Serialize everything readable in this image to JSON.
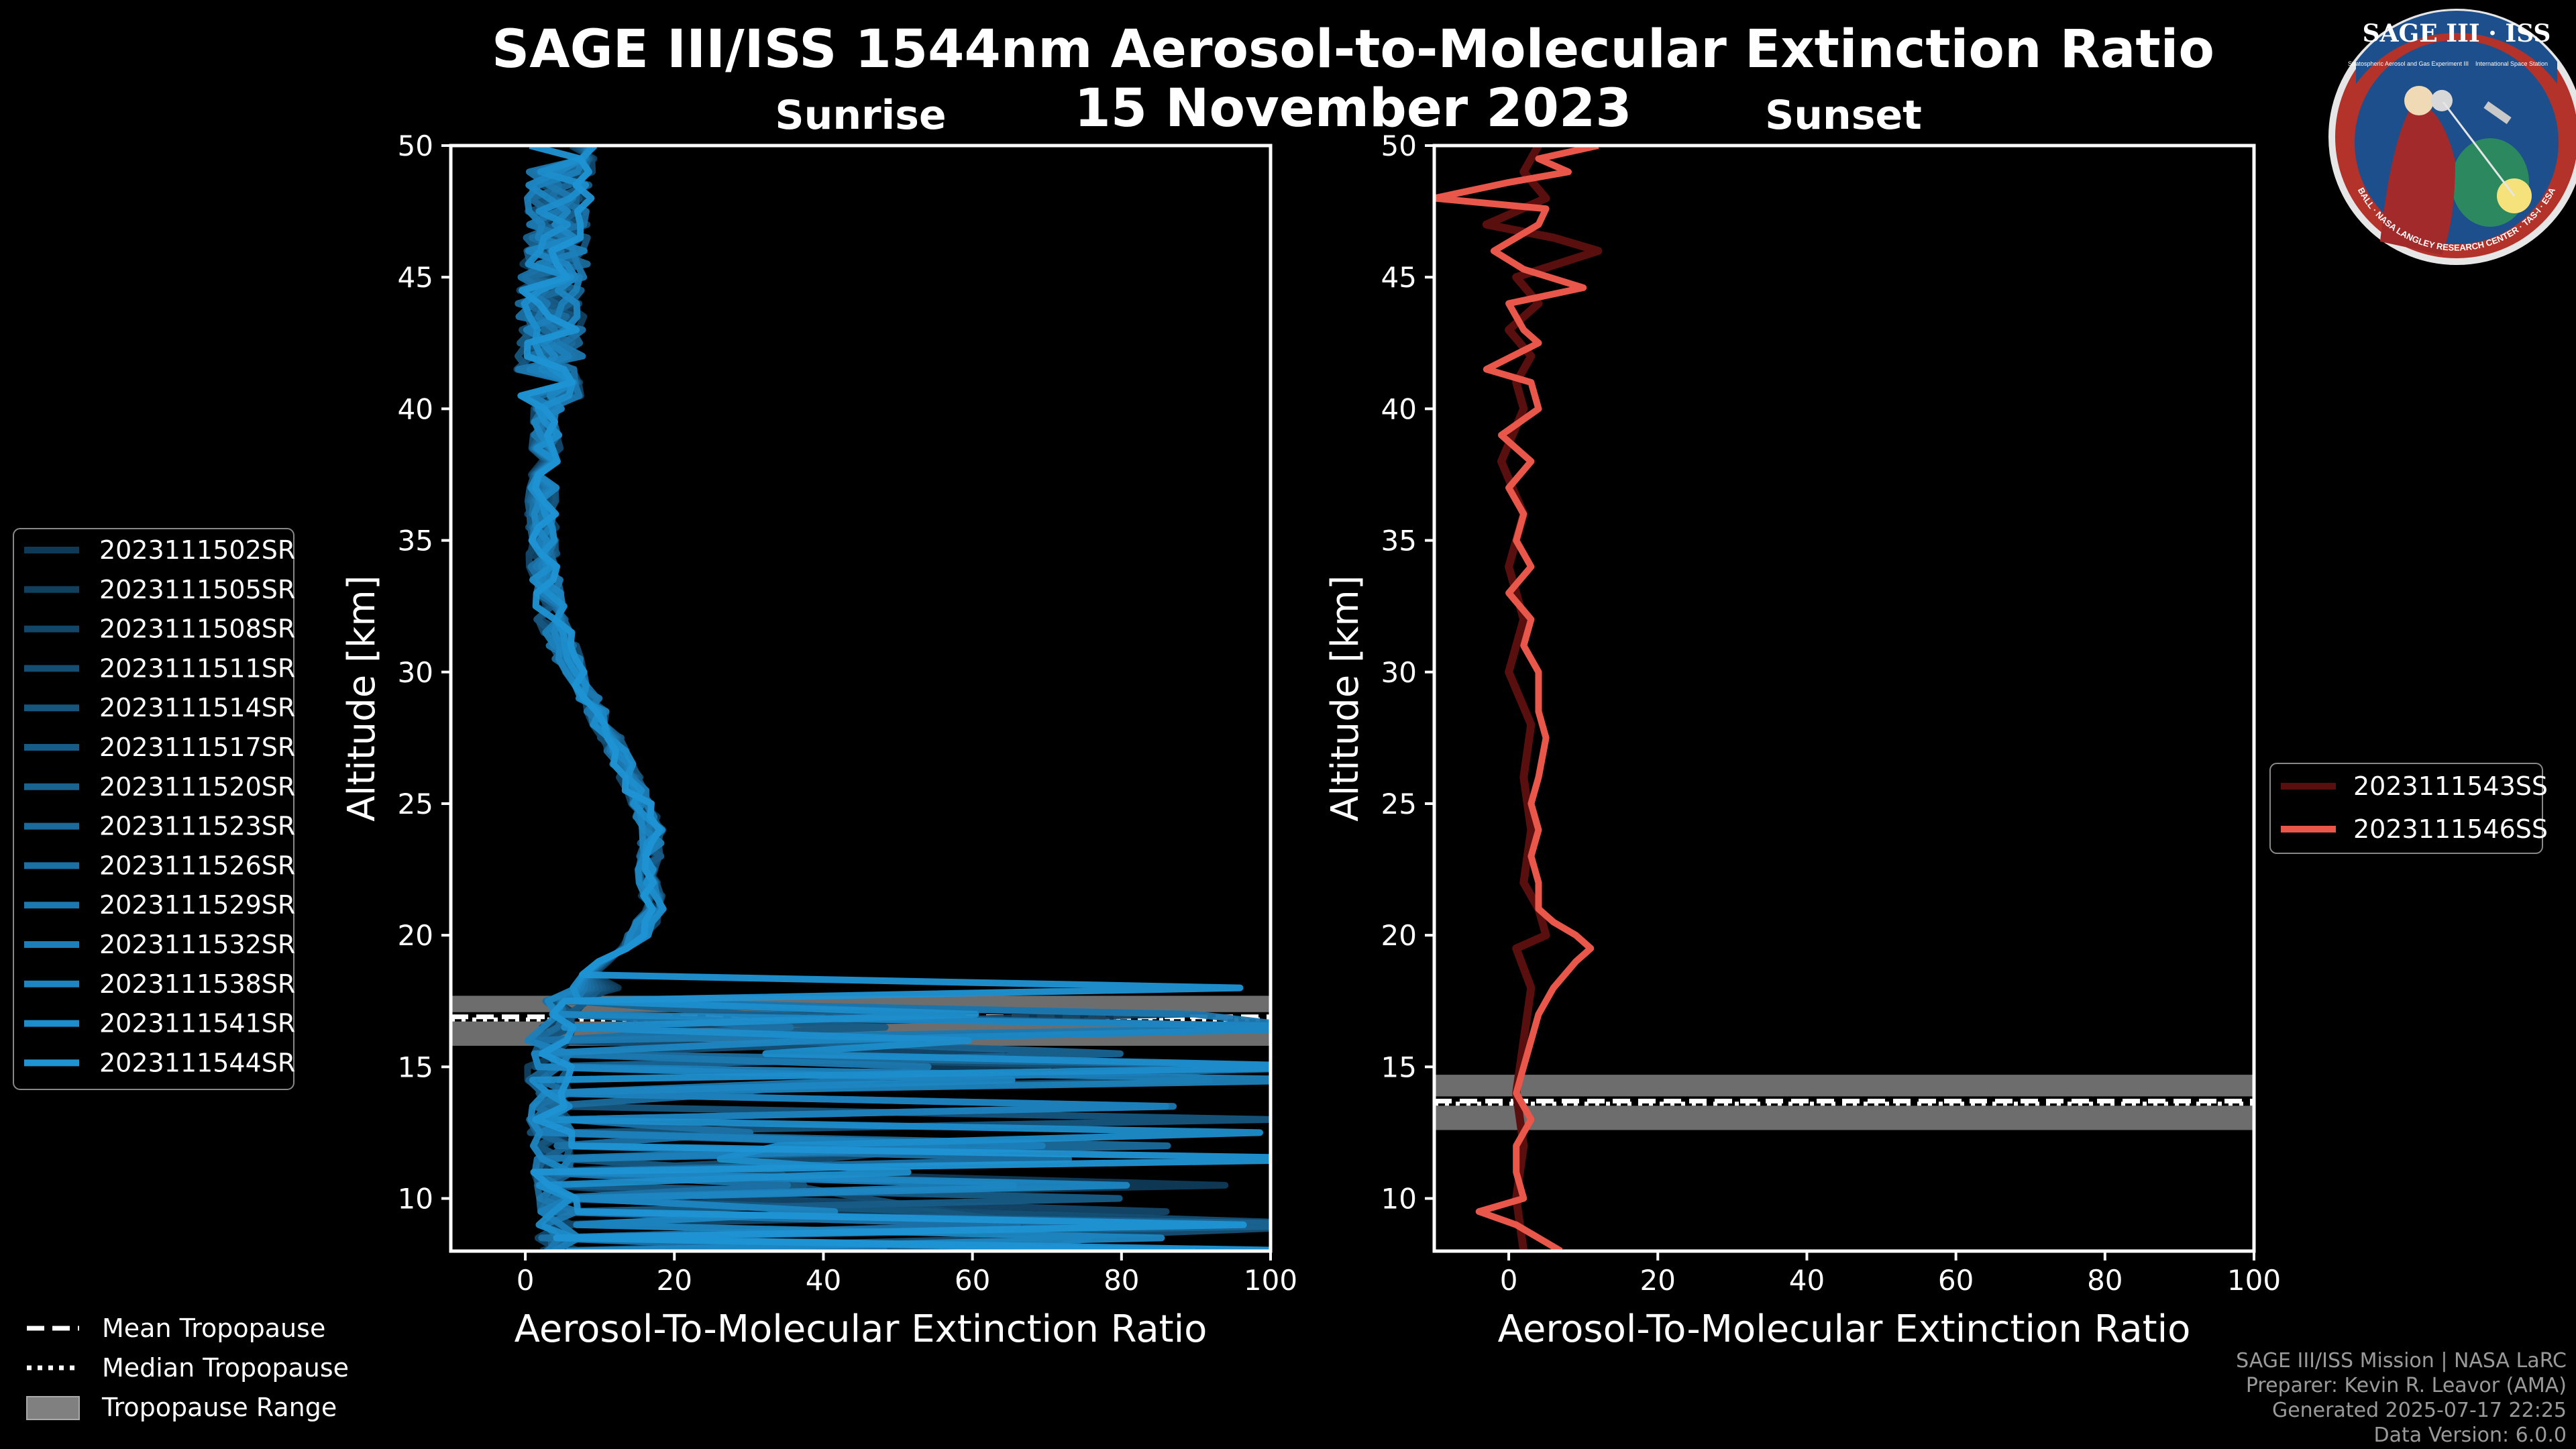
{
  "header": {
    "title_line1": "SAGE III/ISS 1544nm Aerosol-to-Molecular Extinction Ratio",
    "title_line2": "15 November 2023"
  },
  "colors": {
    "background": "#000000",
    "sunrise": "#1f8dcc",
    "sunset_light": "#e8574a",
    "sunset_dark": "#5a0f0f",
    "tropo_range": "#808080"
  },
  "tropo_legend": [
    {
      "label": "Mean Tropopause",
      "style": "dashed"
    },
    {
      "label": "Median Tropopause",
      "style": "dotted"
    },
    {
      "label": "Tropopause Range",
      "style": "patch"
    }
  ],
  "footer": {
    "line1": "SAGE III/ISS Mission | NASA LaRC",
    "line2": "Preparer: Kevin R. Leavor (AMA)",
    "line3": "Generated 2025-07-17 22:25",
    "line4": "Data Version: 6.0.0"
  },
  "logo": {
    "title": "SAGE III · ISS",
    "ring": "BALL · NASA LANGLEY RESEARCH CENTER · TAS-I · ESA",
    "sub_left": "Stratospheric Aerosol and Gas Experiment III",
    "sub_right": "International Space Station"
  },
  "chart_data": [
    {
      "type": "line",
      "panel": "sunrise",
      "title": "Sunrise",
      "xlabel": "Aerosol-To-Molecular Extinction Ratio",
      "ylabel": "Altitude [km]",
      "xlim": [
        -10,
        100
      ],
      "ylim": [
        8,
        50
      ],
      "xticks": [
        0,
        20,
        40,
        60,
        80,
        100
      ],
      "yticks": [
        10,
        15,
        20,
        25,
        30,
        35,
        40,
        45,
        50
      ],
      "legend_position": "left",
      "tropopause": {
        "mean": 16.9,
        "median": 16.8,
        "range": [
          15.8,
          17.7
        ]
      },
      "mean_profile": [
        {
          "alt": 50,
          "x": 5.0
        },
        {
          "alt": 48,
          "x": 4.5
        },
        {
          "alt": 46,
          "x": 4.0
        },
        {
          "alt": 44,
          "x": 3.5
        },
        {
          "alt": 42,
          "x": 3.2
        },
        {
          "alt": 40,
          "x": 3.0
        },
        {
          "alt": 38,
          "x": 2.6
        },
        {
          "alt": 36,
          "x": 2.2
        },
        {
          "alt": 34,
          "x": 2.4
        },
        {
          "alt": 32,
          "x": 3.5
        },
        {
          "alt": 30,
          "x": 6.5
        },
        {
          "alt": 28,
          "x": 10.5
        },
        {
          "alt": 26,
          "x": 14.0
        },
        {
          "alt": 24,
          "x": 17.0
        },
        {
          "alt": 22,
          "x": 16.5
        },
        {
          "alt": 21,
          "x": 17.5
        },
        {
          "alt": 20,
          "x": 15.0
        },
        {
          "alt": 19,
          "x": 10.5
        },
        {
          "alt": 18,
          "x": 6.0
        },
        {
          "alt": 17,
          "x": 3.0
        },
        {
          "alt": 16,
          "x": 2.0
        },
        {
          "alt": 14,
          "x": 2.0
        },
        {
          "alt": 12,
          "x": 2.5
        },
        {
          "alt": 10,
          "x": 3.0
        },
        {
          "alt": 8,
          "x": 3.5
        }
      ],
      "series": [
        {
          "name": "2023111502SR",
          "color": "#0f3a57"
        },
        {
          "name": "2023111505SR",
          "color": "#11405f"
        },
        {
          "name": "2023111508SR",
          "color": "#134769"
        },
        {
          "name": "2023111511SR",
          "color": "#154e73"
        },
        {
          "name": "2023111514SR",
          "color": "#16557d"
        },
        {
          "name": "2023111517SR",
          "color": "#175c87"
        },
        {
          "name": "2023111520SR",
          "color": "#196391"
        },
        {
          "name": "2023111523SR",
          "color": "#1a6a9b"
        },
        {
          "name": "2023111526SR",
          "color": "#1b71a5"
        },
        {
          "name": "2023111529SR",
          "color": "#1c78af"
        },
        {
          "name": "2023111532SR",
          "color": "#1c7fb9"
        },
        {
          "name": "2023111538SR",
          "color": "#1d86c2"
        },
        {
          "name": "2023111541SR",
          "color": "#1e8dcb"
        },
        {
          "name": "2023111544SR",
          "color": "#1f94d4"
        }
      ]
    },
    {
      "type": "line",
      "panel": "sunset",
      "title": "Sunset",
      "xlabel": "Aerosol-To-Molecular Extinction Ratio",
      "ylabel": "Altitude [km]",
      "xlim": [
        -10,
        100
      ],
      "ylim": [
        8,
        50
      ],
      "xticks": [
        0,
        20,
        40,
        60,
        80,
        100
      ],
      "yticks": [
        10,
        15,
        20,
        25,
        30,
        35,
        40,
        45,
        50
      ],
      "legend_position": "right",
      "tropopause": {
        "mean": 13.7,
        "median": 13.6,
        "range": [
          12.6,
          14.7
        ]
      },
      "series": [
        {
          "name": "2023111543SS",
          "color": "#5a0f0f",
          "points": [
            {
              "alt": 50,
              "x": 4
            },
            {
              "alt": 49,
              "x": 2
            },
            {
              "alt": 48,
              "x": 5
            },
            {
              "alt": 47,
              "x": -3
            },
            {
              "alt": 46.5,
              "x": 6
            },
            {
              "alt": 46,
              "x": 12
            },
            {
              "alt": 45,
              "x": 1
            },
            {
              "alt": 44,
              "x": 4
            },
            {
              "alt": 43,
              "x": 0
            },
            {
              "alt": 42,
              "x": 3
            },
            {
              "alt": 41,
              "x": 1
            },
            {
              "alt": 40,
              "x": 2
            },
            {
              "alt": 38,
              "x": -1
            },
            {
              "alt": 36,
              "x": 2
            },
            {
              "alt": 34,
              "x": 0
            },
            {
              "alt": 32,
              "x": 2
            },
            {
              "alt": 30,
              "x": 0
            },
            {
              "alt": 28,
              "x": 3
            },
            {
              "alt": 26,
              "x": 2
            },
            {
              "alt": 24,
              "x": 3
            },
            {
              "alt": 22,
              "x": 2
            },
            {
              "alt": 21,
              "x": 4
            },
            {
              "alt": 20,
              "x": 5
            },
            {
              "alt": 19.5,
              "x": 1
            },
            {
              "alt": 18,
              "x": 3
            },
            {
              "alt": 16,
              "x": 2
            },
            {
              "alt": 14,
              "x": 1
            },
            {
              "alt": 12,
              "x": 2
            },
            {
              "alt": 10,
              "x": 1
            },
            {
              "alt": 8,
              "x": 2
            }
          ]
        },
        {
          "name": "2023111546SS",
          "color": "#e8574a",
          "points": [
            {
              "alt": 50,
              "x": 12
            },
            {
              "alt": 49.5,
              "x": 4
            },
            {
              "alt": 49,
              "x": 8
            },
            {
              "alt": 48.6,
              "x": 0
            },
            {
              "alt": 48,
              "x": -10
            },
            {
              "alt": 47.6,
              "x": 5
            },
            {
              "alt": 47,
              "x": 4
            },
            {
              "alt": 46,
              "x": -2
            },
            {
              "alt": 45.3,
              "x": 2
            },
            {
              "alt": 44.6,
              "x": 10
            },
            {
              "alt": 44,
              "x": 0
            },
            {
              "alt": 43,
              "x": 2
            },
            {
              "alt": 42.5,
              "x": 4
            },
            {
              "alt": 41.5,
              "x": -3
            },
            {
              "alt": 41,
              "x": 3
            },
            {
              "alt": 40,
              "x": 4
            },
            {
              "alt": 39,
              "x": -1
            },
            {
              "alt": 38,
              "x": 3
            },
            {
              "alt": 37,
              "x": 0
            },
            {
              "alt": 36,
              "x": 2
            },
            {
              "alt": 35,
              "x": 1
            },
            {
              "alt": 34,
              "x": 3
            },
            {
              "alt": 33,
              "x": 0
            },
            {
              "alt": 32,
              "x": 3
            },
            {
              "alt": 31,
              "x": 2
            },
            {
              "alt": 30,
              "x": 4
            },
            {
              "alt": 28.5,
              "x": 4
            },
            {
              "alt": 27.5,
              "x": 5
            },
            {
              "alt": 26,
              "x": 4
            },
            {
              "alt": 25,
              "x": 3
            },
            {
              "alt": 24,
              "x": 4
            },
            {
              "alt": 23,
              "x": 3
            },
            {
              "alt": 22,
              "x": 4
            },
            {
              "alt": 21,
              "x": 4
            },
            {
              "alt": 20.5,
              "x": 6
            },
            {
              "alt": 20,
              "x": 9
            },
            {
              "alt": 19.5,
              "x": 11
            },
            {
              "alt": 19,
              "x": 9
            },
            {
              "alt": 18,
              "x": 6
            },
            {
              "alt": 17,
              "x": 4
            },
            {
              "alt": 16,
              "x": 3
            },
            {
              "alt": 15,
              "x": 2
            },
            {
              "alt": 14,
              "x": 1
            },
            {
              "alt": 13,
              "x": 3
            },
            {
              "alt": 12,
              "x": 1
            },
            {
              "alt": 11,
              "x": 1
            },
            {
              "alt": 10,
              "x": 2
            },
            {
              "alt": 9.5,
              "x": -4
            },
            {
              "alt": 9,
              "x": 1
            },
            {
              "alt": 8,
              "x": 7
            }
          ]
        }
      ]
    }
  ]
}
